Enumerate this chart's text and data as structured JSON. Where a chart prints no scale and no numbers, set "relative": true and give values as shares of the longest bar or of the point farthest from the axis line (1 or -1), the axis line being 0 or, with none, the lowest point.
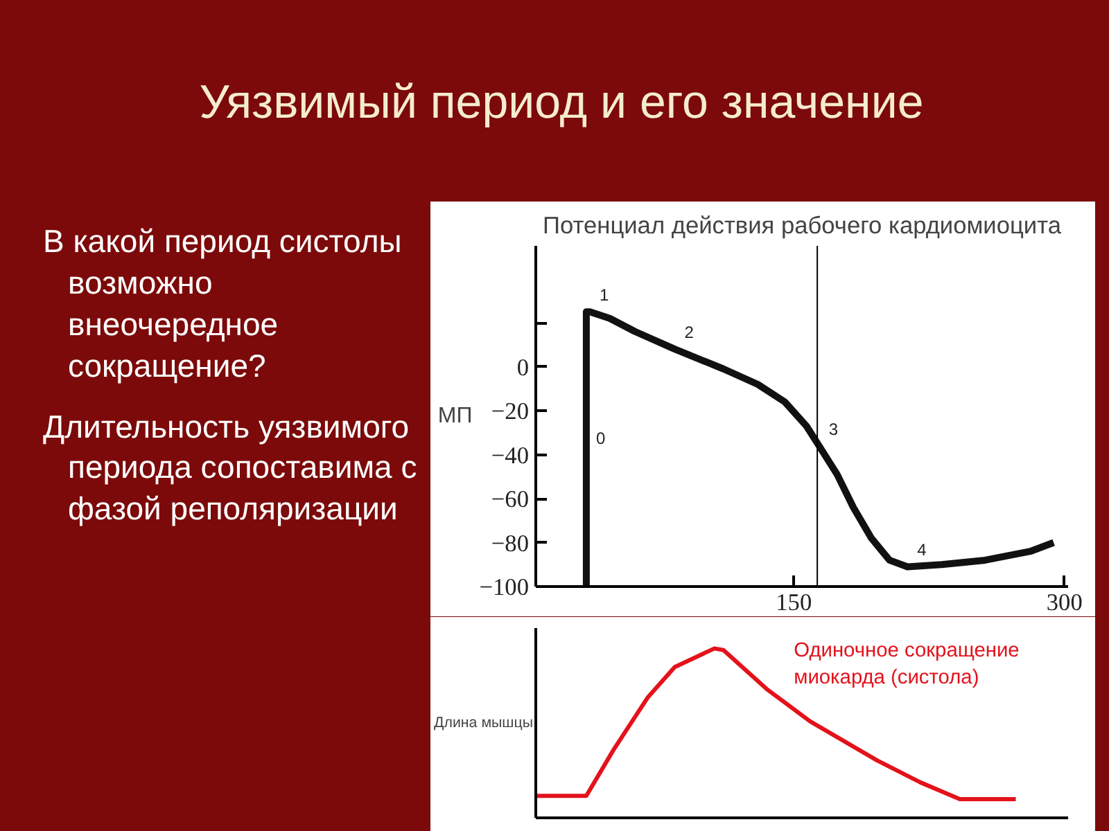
{
  "chart_data": [
    {
      "type": "line",
      "title": "Уязвимый период и его значение",
      "subtitle": "Потенциал действия рабочего кардиомиоцита",
      "ylabel": "МП",
      "annotations": [
        "В какой период систолы возможно внеочередное сокращение?",
        "Длительность уязвимого периода сопоставима с фазой реполяризации",
        {
          "text": "0",
          "x": 35,
          "y": -40
        },
        {
          "text": "1",
          "x": 37,
          "y": 25
        },
        {
          "text": "2",
          "x": 84,
          "y": 8
        },
        {
          "text": "3",
          "x": 164,
          "y": -36
        },
        {
          "text": "4",
          "x": 213,
          "y": -91
        }
      ],
      "xlim": [
        7,
        302
      ],
      "xticks": [
        150,
        300
      ],
      "ylim": [
        -100,
        55
      ],
      "yticks": [
        {
          "value": -100,
          "label": "−100"
        },
        {
          "value": -80,
          "label": "−80"
        },
        {
          "value": -60,
          "label": "−60"
        },
        {
          "value": -40,
          "label": "−40"
        },
        {
          "value": -20,
          "label": "−20"
        },
        0,
        {
          "value": 20,
          "label": null
        }
      ],
      "ref_lines": [
        {
          "axis": "x",
          "value": 163,
          "color": "#000000"
        }
      ],
      "series": [
        {
          "color": "#111111",
          "x": [
            35,
            35,
            37,
            48,
            62,
            84,
            111,
            130,
            145,
            157,
            164,
            174,
            183,
            193,
            203,
            213,
            232,
            256,
            281,
            294
          ],
          "values": [
            -100,
            25,
            25,
            22,
            16,
            8,
            -1,
            -8,
            -16,
            -27,
            -36,
            -49,
            -64,
            -78,
            -88,
            -91,
            -90,
            -88,
            -84,
            -80
          ]
        }
      ]
    },
    {
      "type": "line",
      "relative": true,
      "ylabel": "Длина мышцы",
      "xlim": [
        7,
        302
      ],
      "annotations": [
        "Одиночное сокращение миокарда (систола)"
      ],
      "series": [
        {
          "color": "#e3121b",
          "x": [
            7,
            35,
            50,
            69,
            84,
            106,
            111,
            135,
            159,
            196,
            220,
            242,
            273
          ],
          "values": [
            0.13,
            0.13,
            0.4,
            0.71,
            0.89,
            1,
            0.99,
            0.76,
            0.57,
            0.34,
            0.21,
            0.11,
            0.11
          ]
        }
      ]
    }
  ]
}
